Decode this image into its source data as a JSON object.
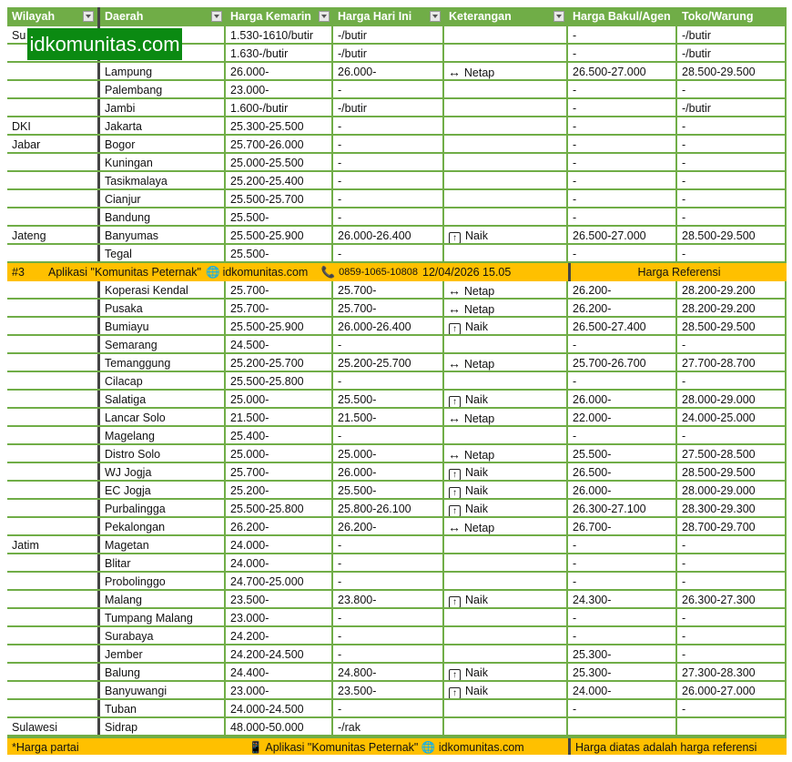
{
  "headers": [
    "Wilayah",
    "Daerah",
    "Harga Kemarin",
    "Harga Hari Ini",
    "Keterangan",
    "Harga Bakul/Agen",
    "Toko/Warung"
  ],
  "watermark": "idkomunitas.com",
  "status_labels": {
    "netap": "Netap",
    "naik": "Naik"
  },
  "icons": {
    "netap": "left-right-arrow-icon",
    "naik": "up-arrow-box-icon"
  },
  "colors": {
    "header": "#70ad47",
    "banner": "#ffc000",
    "watermark": "#0b8a12"
  },
  "rows_a": [
    [
      "Su",
      "",
      "1.530-1610/butir",
      "-/butir",
      "",
      "-",
      "-/butir"
    ],
    [
      "",
      "",
      "1.630-/butir",
      "-/butir",
      "",
      "-",
      "-/butir"
    ],
    [
      "",
      "Lampung",
      "26.000-",
      "26.000-",
      "netap",
      "26.500-27.000",
      "28.500-29.500"
    ],
    [
      "",
      "Palembang",
      "23.000-",
      "-",
      "",
      "-",
      "-"
    ],
    [
      "",
      "Jambi",
      "1.600-/butir",
      "-/butir",
      "",
      "-",
      "-/butir"
    ],
    [
      "DKI",
      "Jakarta",
      "25.300-25.500",
      "-",
      "",
      "-",
      "-"
    ],
    [
      "Jabar",
      "Bogor",
      "25.700-26.000",
      "-",
      "",
      "-",
      "-"
    ],
    [
      "",
      "Kuningan",
      "25.000-25.500",
      "-",
      "",
      "-",
      "-"
    ],
    [
      "",
      "Tasikmalaya",
      "25.200-25.400",
      "-",
      "",
      "-",
      "-"
    ],
    [
      "",
      "Cianjur",
      "25.500-25.700",
      "-",
      "",
      "-",
      "-"
    ],
    [
      "",
      "Bandung",
      "25.500-",
      "-",
      "",
      "-",
      "-"
    ],
    [
      "Jateng",
      "Banyumas",
      "25.500-25.900",
      "26.000-26.400",
      "naik",
      "26.500-27.000",
      "28.500-29.500"
    ],
    [
      "",
      "Tegal",
      "25.500-",
      "-",
      "",
      "-",
      "-"
    ]
  ],
  "banner": {
    "num": "#3",
    "app": "Aplikasi \"Komunitas Peternak\"",
    "site": "idkomunitas.com",
    "phone": "0859-1065-10808",
    "datetime": "12/04/2026 15.05",
    "ref": "Harga Referensi"
  },
  "rows_b": [
    [
      "",
      "Koperasi Kendal",
      "25.700-",
      "25.700-",
      "netap",
      "26.200-",
      "28.200-29.200"
    ],
    [
      "",
      "Pusaka",
      "25.700-",
      "25.700-",
      "netap",
      "26.200-",
      "28.200-29.200"
    ],
    [
      "",
      "Bumiayu",
      "25.500-25.900",
      "26.000-26.400",
      "naik",
      "26.500-27.400",
      "28.500-29.500"
    ],
    [
      "",
      "Semarang",
      "24.500-",
      "-",
      "",
      "-",
      "-"
    ],
    [
      "",
      "Temanggung",
      "25.200-25.700",
      "25.200-25.700",
      "netap",
      "25.700-26.700",
      "27.700-28.700"
    ],
    [
      "",
      "Cilacap",
      "25.500-25.800",
      "-",
      "",
      "-",
      "-"
    ],
    [
      "",
      "Salatiga",
      "25.000-",
      "25.500-",
      "naik",
      "26.000-",
      "28.000-29.000"
    ],
    [
      "",
      "Lancar Solo",
      "21.500-",
      "21.500-",
      "netap",
      "22.000-",
      "24.000-25.000"
    ],
    [
      "",
      "Magelang",
      "25.400-",
      "-",
      "",
      "-",
      "-"
    ],
    [
      "",
      "Distro Solo",
      "25.000-",
      "25.000-",
      "netap",
      "25.500-",
      "27.500-28.500"
    ],
    [
      "",
      "WJ Jogja",
      "25.700-",
      "26.000-",
      "naik",
      "26.500-",
      "28.500-29.500"
    ],
    [
      "",
      "EC Jogja",
      "25.200-",
      "25.500-",
      "naik",
      "26.000-",
      "28.000-29.000"
    ],
    [
      "",
      "Purbalingga",
      "25.500-25.800",
      "25.800-26.100",
      "naik",
      "26.300-27.100",
      "28.300-29.300"
    ],
    [
      "",
      "Pekalongan",
      "26.200-",
      "26.200-",
      "netap",
      "26.700-",
      "28.700-29.700"
    ],
    [
      "Jatim",
      "Magetan",
      "24.000-",
      "-",
      "",
      "-",
      "-"
    ],
    [
      "",
      "Blitar",
      "24.000-",
      "-",
      "",
      "-",
      "-"
    ],
    [
      "",
      "Probolinggo",
      "24.700-25.000",
      "-",
      "",
      "-",
      "-"
    ],
    [
      "",
      "Malang",
      "23.500-",
      "23.800-",
      "naik",
      "24.300-",
      "26.300-27.300"
    ],
    [
      "",
      "Tumpang Malang",
      "23.000-",
      "-",
      "",
      "-",
      "-"
    ],
    [
      "",
      "Surabaya",
      "24.200-",
      "-",
      "",
      "-",
      "-"
    ],
    [
      "",
      "Jember",
      "24.200-24.500",
      "-",
      "",
      "25.300-",
      "-"
    ],
    [
      "",
      "Balung",
      "24.400-",
      "24.800-",
      "naik",
      "25.300-",
      "27.300-28.300"
    ],
    [
      "",
      "Banyuwangi",
      "23.000-",
      "23.500-",
      "naik",
      "24.000-",
      "26.000-27.000"
    ],
    [
      "",
      "Tuban",
      "24.000-24.500",
      "-",
      "",
      "-",
      "-"
    ],
    [
      "Sulawesi",
      "Sidrap",
      "48.000-50.000",
      "-/rak",
      "",
      "",
      ""
    ]
  ],
  "footer": {
    "note": "*Harga partai",
    "app": "Aplikasi \"Komunitas Peternak\"",
    "site": "idkomunitas.com",
    "ref": "Harga diatas adalah harga referensi"
  }
}
